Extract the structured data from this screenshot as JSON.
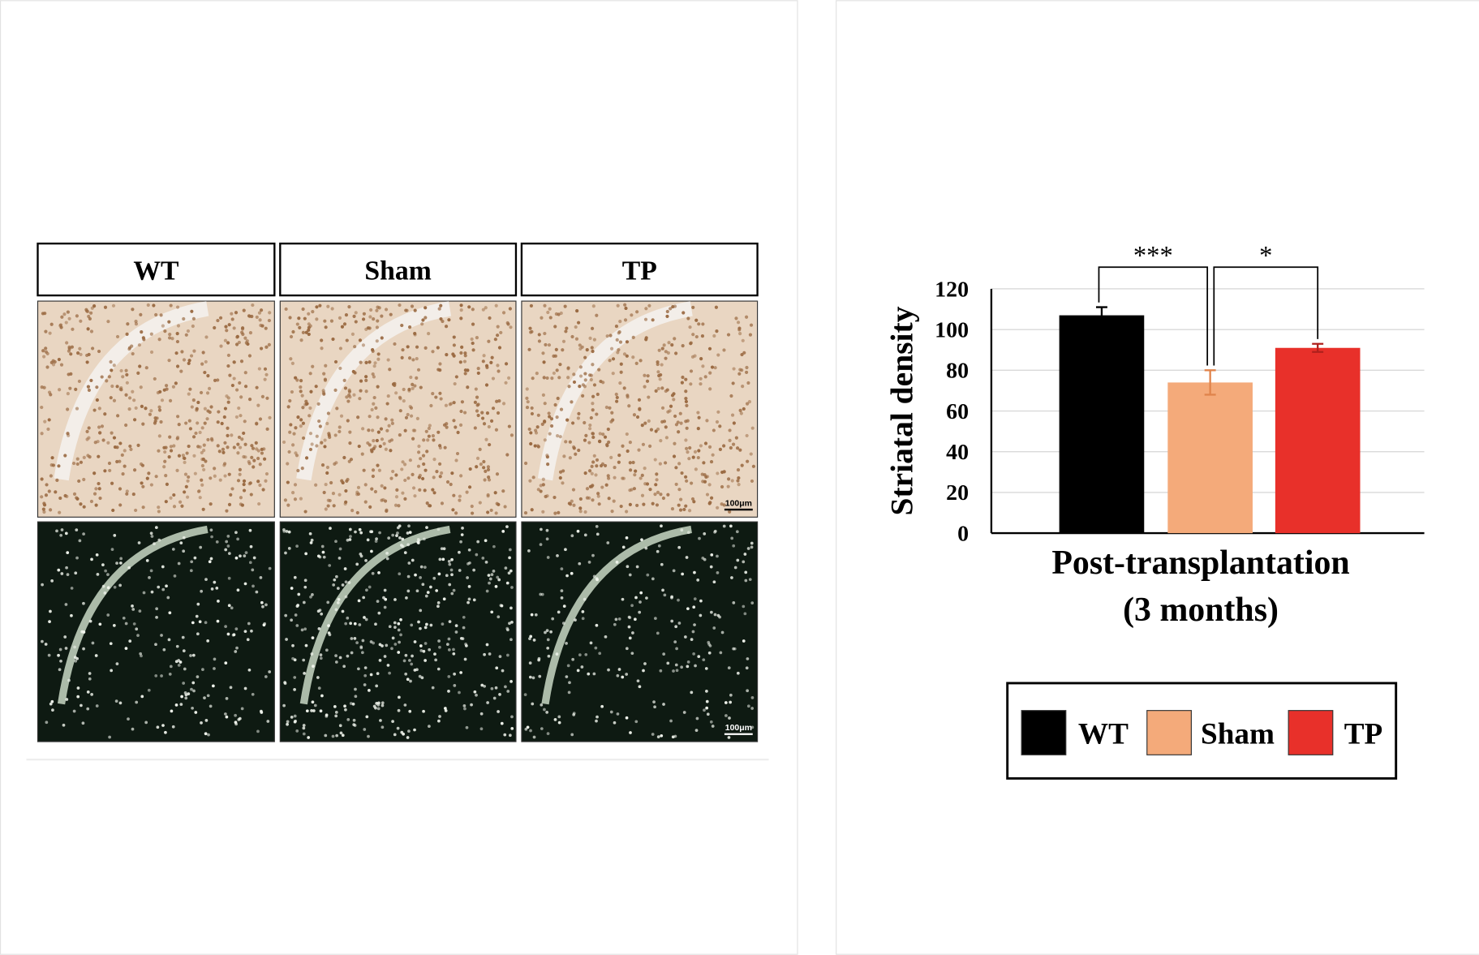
{
  "image_panel": {
    "labels": [
      "WT",
      "Sham",
      "TP"
    ],
    "scale_bars": [
      "100μm",
      "100μm"
    ]
  },
  "chart_data": {
    "type": "bar",
    "ylabel": "Striatal density",
    "xlabel": [
      "Post-transplantation",
      "(3 months)"
    ],
    "categories": [
      "WT",
      "Sham",
      "TP"
    ],
    "values": [
      107,
      74,
      91
    ],
    "errors": [
      4,
      6,
      2
    ],
    "colors": [
      "#000000",
      "#f4aa7a",
      "#e8302a"
    ],
    "error_colors": [
      "#000000",
      "#e0844c",
      "#b0201c"
    ],
    "ylim": [
      0,
      120
    ],
    "yticks": [
      0,
      20,
      40,
      60,
      80,
      100,
      120
    ],
    "grid": true,
    "annotations": [
      "***",
      "*"
    ],
    "legend": "bottom"
  }
}
